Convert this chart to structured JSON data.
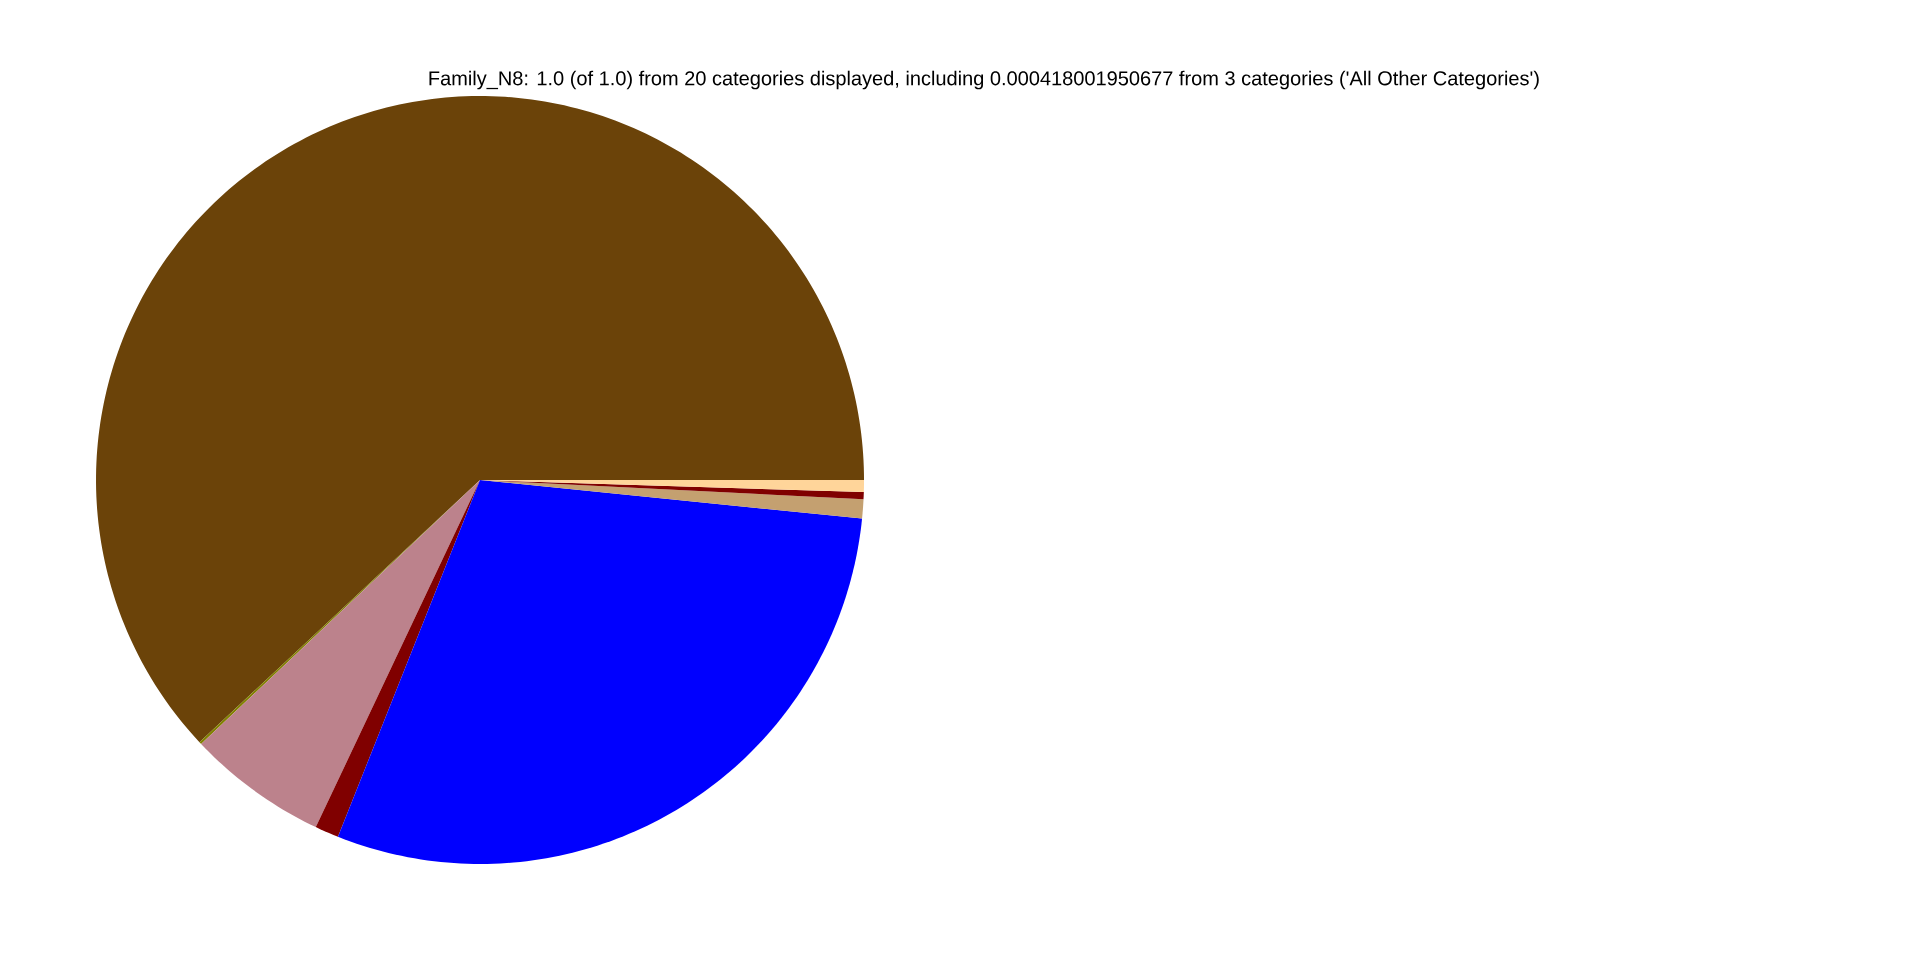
{
  "chart_data": {
    "type": "pie",
    "title": "Family_N8: 1.0 (of 1.0) from 20 categories displayed, including 0.000418001950677 from 3 categories ('All Other Categories')",
    "categories": [
      null,
      null,
      null,
      null,
      null,
      null,
      null,
      null
    ],
    "values": [
      61.9,
      0.1,
      5.9,
      1.0,
      29.4,
      0.8,
      0.3,
      0.5
    ],
    "colors": [
      "#6b4309",
      "#808000",
      "#bc828c",
      "#800000",
      "#0000ff",
      "#c4a070",
      "#800000",
      "#ffd59a"
    ]
  }
}
